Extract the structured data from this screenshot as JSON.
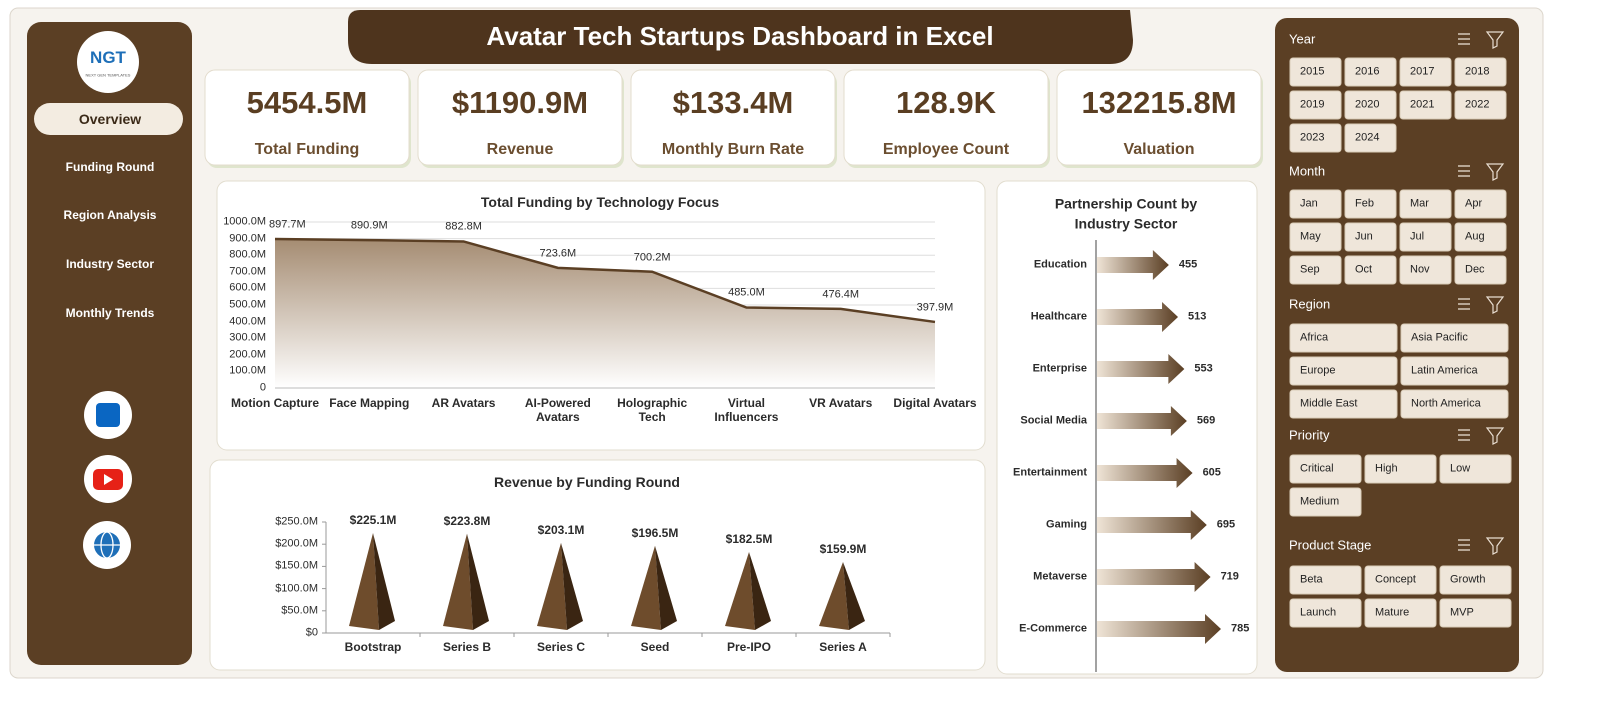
{
  "header": {
    "title": "Avatar Tech Startups Dashboard in Excel"
  },
  "logo": {
    "text": "NGT",
    "subtext": "NEXT GEN TEMPLATES"
  },
  "nav": [
    "Overview",
    "Funding Round",
    "Region Analysis",
    "Industry Sector",
    "Monthly Trends"
  ],
  "kpis": [
    {
      "value": "5454.5M",
      "label": "Total Funding"
    },
    {
      "value": "$1190.9M",
      "label": "Revenue"
    },
    {
      "value": "$133.4M",
      "label": "Monthly Burn Rate"
    },
    {
      "value": "128.9K",
      "label": "Employee Count"
    },
    {
      "value": "132215.8M",
      "label": "Valuation"
    }
  ],
  "slicers": [
    {
      "title": "Year",
      "items": [
        "2015",
        "2016",
        "2017",
        "2018",
        "2019",
        "2020",
        "2021",
        "2022",
        "2023",
        "2024"
      ]
    },
    {
      "title": "Month",
      "items": [
        "Jan",
        "Feb",
        "Mar",
        "Apr",
        "May",
        "Jun",
        "Jul",
        "Aug",
        "Sep",
        "Oct",
        "Nov",
        "Dec"
      ]
    },
    {
      "title": "Region",
      "items": [
        "Africa",
        "Asia Pacific",
        "Europe",
        "Latin America",
        "Middle East",
        "North America"
      ]
    },
    {
      "title": "Priority",
      "items": [
        "Critical",
        "High",
        "Low",
        "Medium"
      ]
    },
    {
      "title": "Product Stage",
      "items": [
        "Beta",
        "Concept",
        "Growth",
        "Launch",
        "Mature",
        "MVP"
      ]
    }
  ],
  "chart_data": [
    {
      "type": "area",
      "title": "Total Funding by Technology Focus",
      "categories": [
        "Motion Capture",
        "Face Mapping",
        "AR Avatars",
        "AI-Powered Avatars",
        "Holographic Tech",
        "Virtual Influencers",
        "VR Avatars",
        "Digital Avatars"
      ],
      "values": [
        897.7,
        890.9,
        882.8,
        723.6,
        700.2,
        485.0,
        476.4,
        397.9
      ],
      "value_labels": [
        "897.7M",
        "890.9M",
        "882.8M",
        "723.6M",
        "700.2M",
        "485.0M",
        "476.4M",
        "397.9M"
      ],
      "color": "#5b3f24",
      "ylim": [
        0,
        1000
      ],
      "yticks": [
        {
          "value": 1000,
          "label": "1000.0M"
        },
        {
          "value": 900,
          "label": "900.0M"
        },
        {
          "value": 800,
          "label": "800.0M"
        },
        {
          "value": 700,
          "label": "700.0M"
        },
        {
          "value": 600,
          "label": "600.0M"
        },
        {
          "value": 500,
          "label": "500.0M"
        },
        {
          "value": 400,
          "label": "400.0M"
        },
        {
          "value": 300,
          "label": "300.0M"
        },
        {
          "value": 200,
          "label": "200.0M"
        },
        {
          "value": 100,
          "label": "100.0M"
        },
        0
      ],
      "grid": true
    },
    {
      "type": "pyramid",
      "title": "Revenue by Funding Round",
      "categories": [
        "Bootstrap",
        "Series B",
        "Series C",
        "Seed",
        "Pre-IPO",
        "Series A"
      ],
      "values": [
        225.1,
        223.8,
        203.1,
        196.5,
        182.5,
        159.9
      ],
      "value_labels": [
        "$225.1M",
        "$223.8M",
        "$203.1M",
        "$196.5M",
        "$182.5M",
        "$159.9M"
      ],
      "color": "#5b3f24",
      "ylim": [
        0,
        250
      ],
      "yticks": [
        {
          "value": 250,
          "label": "$250.0M"
        },
        {
          "value": 200,
          "label": "$200.0M"
        },
        {
          "value": 150,
          "label": "$150.0M"
        },
        {
          "value": 100,
          "label": "$100.0M"
        },
        {
          "value": 50,
          "label": "$50.0M"
        },
        {
          "value": 0,
          "label": "$0"
        }
      ],
      "grid": false
    },
    {
      "type": "arrow",
      "title": "Partnership Count by Industry Sector",
      "categories": [
        "Education",
        "Healthcare",
        "Enterprise",
        "Social Media",
        "Entertainment",
        "Gaming",
        "Metaverse",
        "E-Commerce"
      ],
      "values": [
        455,
        513,
        553,
        569,
        605,
        695,
        719,
        785
      ],
      "color": "#5b3f24"
    }
  ]
}
